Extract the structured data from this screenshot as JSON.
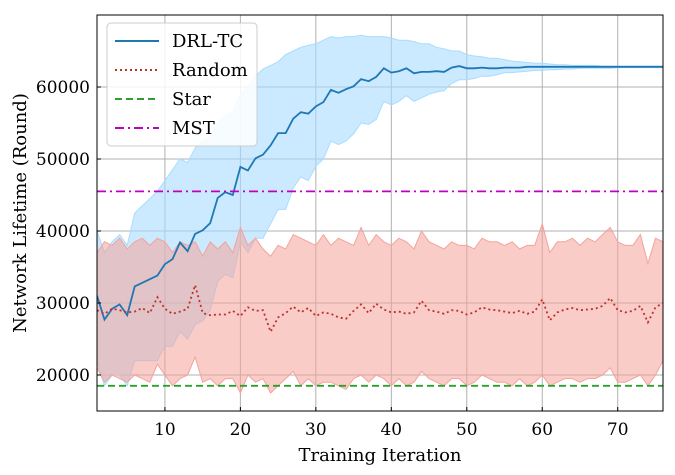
{
  "chart_data": {
    "type": "line",
    "title": "",
    "xlabel": "Training Iteration",
    "ylabel": "Network Lifetime (Round)",
    "xlim": [
      1,
      76
    ],
    "ylim": [
      15000,
      70000
    ],
    "xticks": [
      10,
      20,
      30,
      40,
      50,
      60,
      70
    ],
    "yticks": [
      20000,
      30000,
      40000,
      50000,
      60000
    ],
    "xtick_labels": [
      "10",
      "20",
      "30",
      "40",
      "50",
      "60",
      "70"
    ],
    "ytick_labels": [
      "20000",
      "30000",
      "40000",
      "50000",
      "60000"
    ],
    "grid": true,
    "legend_position": "top-left",
    "colors": {
      "drl": "#1f77b4",
      "drl_band": "#a8dcff",
      "random": "#c0302a",
      "random_band": "#f4a39b",
      "star": "#2ca02c",
      "mst": "#c000c0"
    },
    "series": [
      {
        "name": "DRL-TC",
        "style": "solid",
        "x": [
          1,
          2,
          3,
          4,
          5,
          6,
          7,
          8,
          9,
          10,
          11,
          12,
          13,
          14,
          15,
          16,
          17,
          18,
          19,
          20,
          21,
          22,
          23,
          24,
          25,
          26,
          27,
          28,
          29,
          30,
          31,
          32,
          33,
          34,
          35,
          36,
          37,
          38,
          39,
          40,
          41,
          42,
          43,
          44,
          45,
          46,
          47,
          48,
          49,
          50,
          51,
          52,
          53,
          54,
          55,
          56,
          57,
          58,
          59,
          60,
          61,
          62,
          63,
          64,
          65,
          66,
          67,
          68,
          69,
          70,
          71,
          72,
          73,
          74,
          75,
          76
        ],
        "values": [
          31000,
          27700,
          29200,
          29800,
          28300,
          32300,
          32800,
          33300,
          33800,
          35400,
          36100,
          38400,
          37200,
          39600,
          40100,
          41100,
          44600,
          45400,
          45000,
          48900,
          48400,
          50100,
          50600,
          51900,
          53600,
          53600,
          55600,
          56500,
          56300,
          57300,
          57900,
          59600,
          59200,
          59700,
          60100,
          61100,
          60800,
          61400,
          62600,
          62000,
          62200,
          62600,
          61900,
          62100,
          62100,
          62200,
          62100,
          62700,
          62900,
          62600,
          62600,
          62700,
          62600,
          62600,
          62700,
          62700,
          62700,
          62800,
          62800,
          62800,
          62800,
          62800,
          62800,
          62800,
          62800,
          62800,
          62800,
          62800,
          62800,
          62800,
          62800,
          62800,
          62800,
          62800,
          62800,
          62800
        ],
        "upper": [
          40000,
          37000,
          38500,
          39500,
          38000,
          42500,
          43500,
          44500,
          45500,
          47000,
          48500,
          50000,
          49500,
          51500,
          52500,
          53000,
          55000,
          56000,
          56500,
          59000,
          60000,
          61500,
          62500,
          63000,
          63500,
          64500,
          65000,
          65500,
          65800,
          66000,
          66500,
          67000,
          66800,
          67000,
          67000,
          67200,
          67000,
          67000,
          67000,
          66800,
          66500,
          66500,
          66300,
          66000,
          66000,
          65500,
          65300,
          65000,
          65000,
          64500,
          64300,
          64200,
          64000,
          64000,
          63800,
          63600,
          63500,
          63400,
          63300,
          63300,
          63200,
          63100,
          63100,
          63000,
          63000,
          63000,
          63000,
          62900,
          62900,
          62900,
          62900,
          62900,
          62900,
          62900,
          62900,
          62900
        ],
        "lower": [
          22000,
          18500,
          20000,
          20000,
          18500,
          22000,
          22000,
          22000,
          22000,
          24000,
          24000,
          26000,
          25000,
          27000,
          27500,
          29000,
          33000,
          34000,
          33500,
          38500,
          37000,
          39000,
          39000,
          41000,
          43000,
          43000,
          46000,
          47500,
          47000,
          49000,
          50000,
          52500,
          52000,
          52500,
          53500,
          55000,
          54800,
          55500,
          58000,
          57500,
          58000,
          58800,
          58000,
          58500,
          59000,
          59300,
          59500,
          60500,
          61000,
          61000,
          61200,
          61500,
          61500,
          61700,
          62000,
          62000,
          62100,
          62200,
          62300,
          62300,
          62400,
          62400,
          62500,
          62500,
          62600,
          62600,
          62600,
          62600,
          62600,
          62700,
          62700,
          62700,
          62700,
          62700,
          62700,
          62700
        ]
      },
      {
        "name": "Random",
        "style": "dotted",
        "x": [
          1,
          2,
          3,
          4,
          5,
          6,
          7,
          8,
          9,
          10,
          11,
          12,
          13,
          14,
          15,
          16,
          17,
          18,
          19,
          20,
          21,
          22,
          23,
          24,
          25,
          26,
          27,
          28,
          29,
          30,
          31,
          32,
          33,
          34,
          35,
          36,
          37,
          38,
          39,
          40,
          41,
          42,
          43,
          44,
          45,
          46,
          47,
          48,
          49,
          50,
          51,
          52,
          53,
          54,
          55,
          56,
          57,
          58,
          59,
          60,
          61,
          62,
          63,
          64,
          65,
          66,
          67,
          68,
          69,
          70,
          71,
          72,
          73,
          74,
          75,
          76
        ],
        "values": [
          29000,
          28500,
          29200,
          29000,
          28700,
          28800,
          29300,
          28600,
          30800,
          29200,
          28500,
          28800,
          29200,
          32500,
          28600,
          28300,
          28400,
          28400,
          28900,
          28200,
          29400,
          28900,
          29000,
          26000,
          28000,
          28600,
          29500,
          28700,
          29300,
          28200,
          28700,
          28500,
          28000,
          27800,
          28900,
          29800,
          28600,
          29900,
          29100,
          28700,
          28800,
          28500,
          28700,
          30300,
          29000,
          28800,
          28500,
          29000,
          28900,
          28400,
          28700,
          29400,
          29100,
          29000,
          28800,
          28600,
          28900,
          28500,
          28800,
          30500,
          27600,
          28700,
          29100,
          29300,
          29000,
          29100,
          29200,
          29600,
          30700,
          29000,
          28700,
          28900,
          29600,
          27300,
          29400,
          30000
        ],
        "upper": [
          37000,
          38500,
          38000,
          39000,
          37500,
          38500,
          39000,
          38000,
          39000,
          38500,
          37000,
          38500,
          38000,
          38500,
          36500,
          38500,
          37500,
          38500,
          37000,
          40500,
          38000,
          39000,
          37500,
          36500,
          38000,
          37500,
          39500,
          39000,
          38500,
          38000,
          39500,
          38000,
          39000,
          38500,
          38000,
          40500,
          38000,
          39500,
          38500,
          38000,
          39000,
          38500,
          37500,
          40000,
          38500,
          38000,
          37500,
          38500,
          38000,
          38000,
          37500,
          39000,
          38500,
          38500,
          38000,
          38500,
          37500,
          38000,
          38000,
          41000,
          37000,
          38500,
          38500,
          39000,
          38000,
          39000,
          38500,
          39500,
          40500,
          38500,
          38000,
          38000,
          39500,
          35500,
          39000,
          38500
        ],
        "lower": [
          21000,
          19000,
          20000,
          19500,
          19000,
          20000,
          19500,
          19000,
          21500,
          20000,
          18500,
          19500,
          20000,
          22500,
          19000,
          19500,
          18500,
          19500,
          19500,
          17500,
          20000,
          19000,
          19500,
          17500,
          18500,
          19500,
          20500,
          18500,
          19500,
          18500,
          19000,
          19000,
          18500,
          18000,
          19500,
          20000,
          19000,
          20000,
          19500,
          18500,
          19500,
          18500,
          19000,
          20500,
          19500,
          19000,
          18500,
          19500,
          19500,
          18500,
          19000,
          20000,
          19500,
          19000,
          19000,
          18500,
          19500,
          18500,
          19000,
          20000,
          18500,
          19000,
          19500,
          19500,
          19000,
          19500,
          19500,
          20000,
          21000,
          19000,
          19000,
          19500,
          20000,
          18500,
          20000,
          22000
        ]
      },
      {
        "name": "Star",
        "style": "dashed",
        "constant": 18500
      },
      {
        "name": "MST",
        "style": "dashdot",
        "constant": 45500
      }
    ]
  }
}
